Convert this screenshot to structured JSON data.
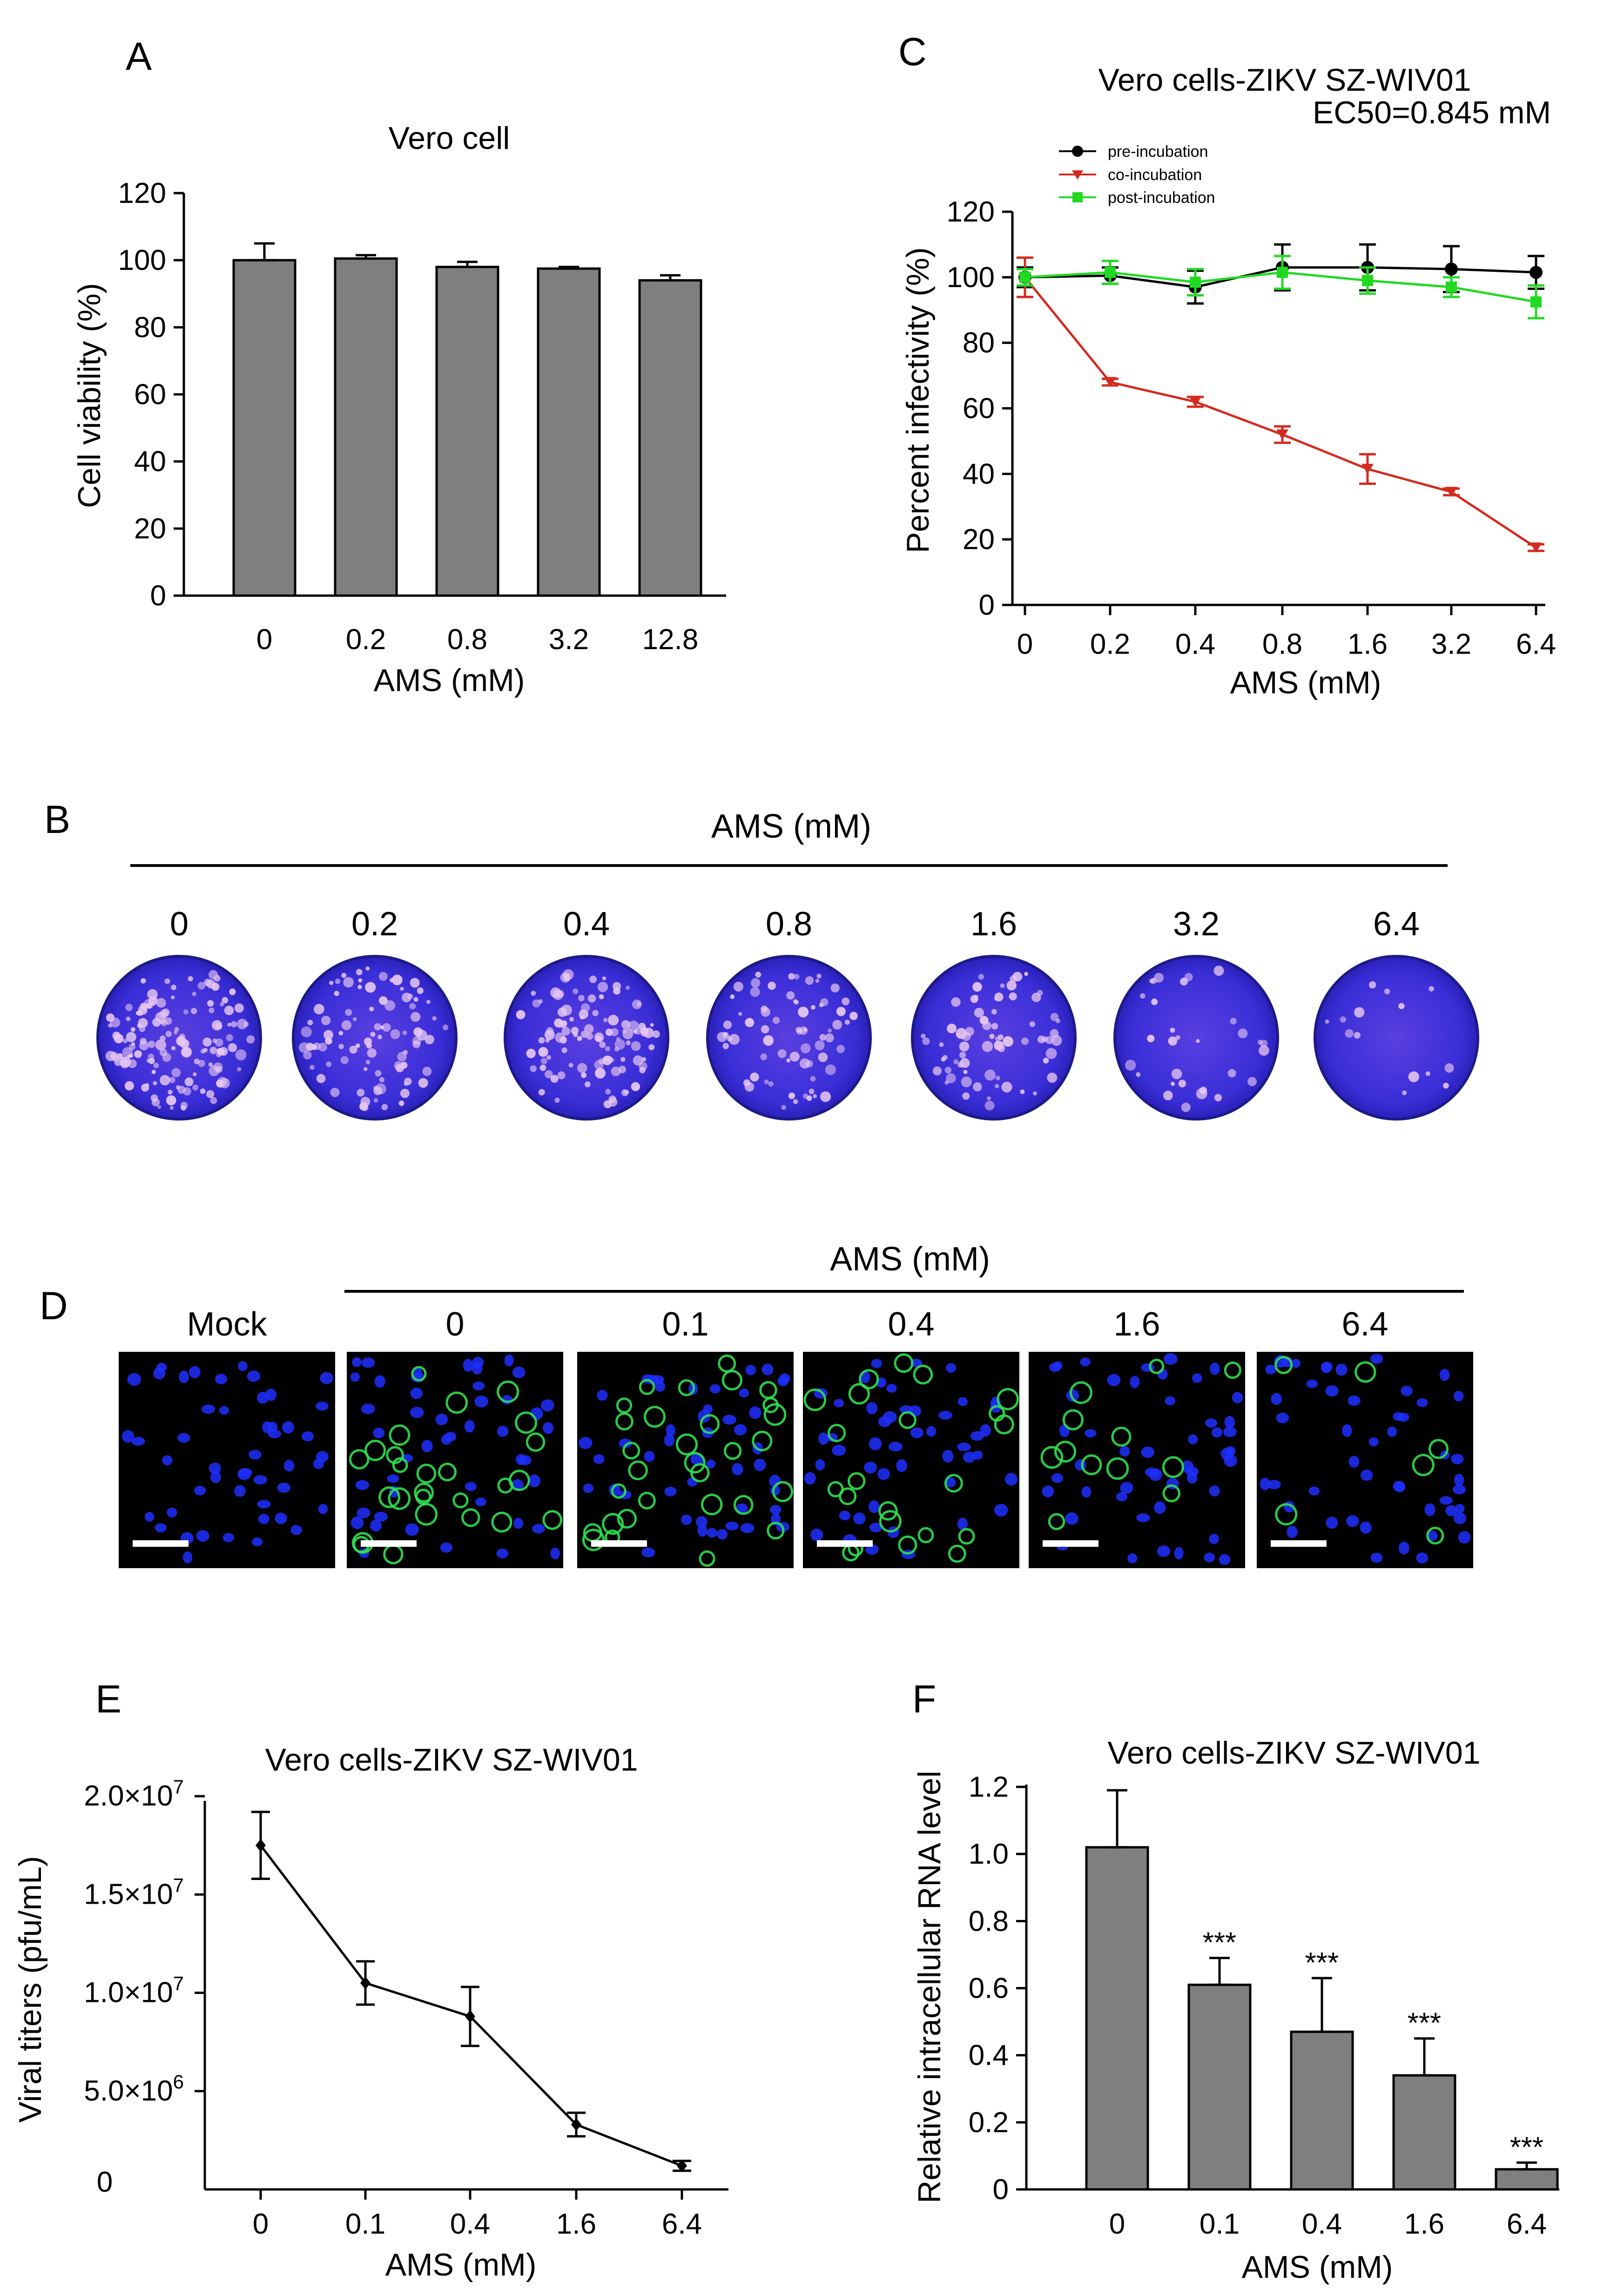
{
  "panels": {
    "a": {
      "label": "A"
    },
    "b": {
      "label": "B",
      "header": "AMS (mM)",
      "concentrations": [
        "0",
        "0.2",
        "0.4",
        "0.8",
        "1.6",
        "3.2",
        "6.4"
      ]
    },
    "c": {
      "label": "C",
      "ec50": "EC50=0.845 mM"
    },
    "d": {
      "label": "D",
      "header": "AMS (mM)",
      "columns": [
        "Mock",
        "0",
        "0.1",
        "0.4",
        "1.6",
        "6.4"
      ]
    },
    "e": {
      "label": "E",
      "extra_zero_label": "0"
    },
    "f": {
      "label": "F",
      "significance": "***"
    }
  },
  "colors": {
    "bar_fill": "#7f7f7f",
    "pre": "#000000",
    "co": "#d42a1e",
    "post": "#22d922",
    "plaque": "#2a28d8",
    "dapi": "#1e2fff",
    "zikv": "#30e050"
  },
  "chart_data": [
    {
      "id": "A",
      "type": "bar",
      "title": "Vero cell",
      "categories": [
        "0",
        "0.2",
        "0.8",
        "3.2",
        "12.8"
      ],
      "values": [
        100,
        100.5,
        98,
        97.5,
        94
      ],
      "errors": [
        5,
        1,
        1.5,
        0.5,
        1.5
      ],
      "xlabel": "AMS (mM)",
      "ylabel": "Cell viability (%)",
      "ylim": [
        0,
        120
      ],
      "yticks": [
        "0",
        "20",
        "40",
        "60",
        "80",
        "100",
        "120"
      ]
    },
    {
      "id": "C",
      "type": "line",
      "title": "Vero cells-ZIKV SZ-WIV01",
      "categories": [
        "0",
        "0.2",
        "0.4",
        "0.8",
        "1.6",
        "3.2",
        "6.4"
      ],
      "series": [
        {
          "name": "pre-incubation",
          "values": [
            100,
            100.5,
            97,
            103,
            103,
            102.5,
            101.5
          ],
          "errors": [
            3,
            2.5,
            5,
            7,
            7,
            7,
            5
          ]
        },
        {
          "name": "co-incubation",
          "values": [
            100,
            68,
            62,
            52,
            41.5,
            34.5,
            17.5
          ],
          "errors": [
            6,
            1,
            1.5,
            2.5,
            4.5,
            1,
            1
          ]
        },
        {
          "name": "post-incubation",
          "values": [
            100,
            101.5,
            98.5,
            101.5,
            99,
            97,
            92.5
          ],
          "errors": [
            2.5,
            3.5,
            4,
            5,
            4,
            3,
            5
          ]
        }
      ],
      "xlabel": "AMS (mM)",
      "ylabel": "Percent infectivity (%)",
      "ylim": [
        0,
        120
      ],
      "yticks": [
        "0",
        "20",
        "40",
        "60",
        "80",
        "100",
        "120"
      ]
    },
    {
      "id": "E",
      "type": "line",
      "title": "Vero cells-ZIKV SZ-WIV01",
      "categories": [
        "0",
        "0.1",
        "0.4",
        "1.6",
        "6.4"
      ],
      "values": [
        17500000,
        10500000,
        8800000,
        3300000,
        1200000
      ],
      "errors": [
        1700000,
        1100000,
        1500000,
        600000,
        250000
      ],
      "xlabel": "AMS (mM)",
      "ylabel": "Viral titers (pfu/mL)",
      "ylim": [
        0,
        20000000
      ],
      "ytick_values": [
        5000000,
        10000000,
        15000000,
        20000000
      ],
      "yticks": [
        {
          "mantissa": "5.0×10",
          "exp": "6"
        },
        {
          "mantissa": "1.0×10",
          "exp": "7"
        },
        {
          "mantissa": "1.5×10",
          "exp": "7"
        },
        {
          "mantissa": "2.0×10",
          "exp": "7"
        }
      ]
    },
    {
      "id": "F",
      "type": "bar",
      "title": "Vero cells-ZIKV SZ-WIV01",
      "categories": [
        "0",
        "0.1",
        "0.4",
        "1.6",
        "6.4"
      ],
      "values": [
        1.02,
        0.61,
        0.47,
        0.34,
        0.06
      ],
      "errors": [
        0.17,
        0.08,
        0.16,
        0.11,
        0.02
      ],
      "significant": [
        false,
        true,
        true,
        true,
        true
      ],
      "xlabel": "AMS (mM)",
      "ylabel": "Relative intracellular RNA level",
      "ylim": [
        0,
        1.2
      ],
      "yticks": [
        "0",
        "0.2",
        "0.4",
        "0.6",
        "0.8",
        "1.0",
        "1.2"
      ]
    }
  ]
}
